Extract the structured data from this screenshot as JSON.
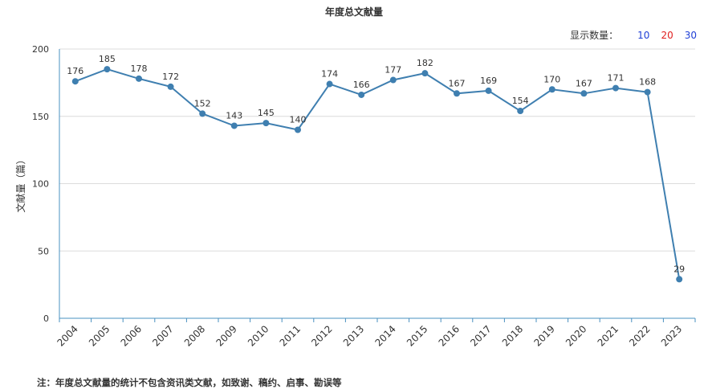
{
  "chart_data": {
    "type": "line",
    "title": "年度总文献量",
    "ylabel": "文献量（篇）",
    "xlabel": "",
    "ylim": [
      0,
      200
    ],
    "yticks": [
      "0",
      "50",
      "100",
      "150",
      "200"
    ],
    "categories": [
      "2004",
      "2005",
      "2006",
      "2007",
      "2008",
      "2009",
      "2010",
      "2011",
      "2012",
      "2013",
      "2014",
      "2015",
      "2016",
      "2017",
      "2018",
      "2019",
      "2020",
      "2021",
      "2022",
      "2023"
    ],
    "values": [
      176,
      185,
      178,
      172,
      152,
      143,
      145,
      140,
      174,
      166,
      177,
      182,
      167,
      169,
      154,
      170,
      167,
      171,
      168,
      29
    ],
    "grid": true,
    "color": "#3f7fb0"
  },
  "count_selector": {
    "label": "显示数量：",
    "options": [
      {
        "text": "10",
        "color": "#1f3fd6"
      },
      {
        "text": "20",
        "color": "#e02020"
      },
      {
        "text": "30",
        "color": "#1f3fd6"
      }
    ]
  },
  "note": "注：年度总文献量的统计不包含资讯类文献，如致谢、稿约、启事、勘误等"
}
